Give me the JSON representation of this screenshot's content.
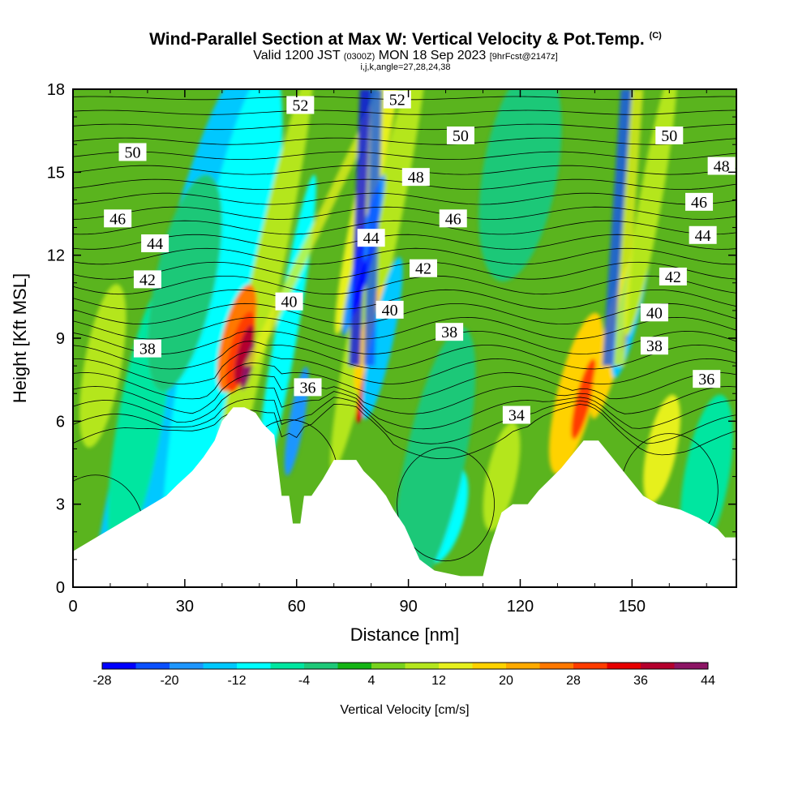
{
  "header": {
    "title": "Wind-Parallel Section at Max W: Vertical Velocity & Pot.Temp.",
    "copyright": "(C)",
    "valid_prefix": "Valid 1200 JST",
    "valid_utc": "(0300Z)",
    "valid_date": "MON 18 Sep 2023",
    "forecast": "[9hrFcst@2147z]",
    "indices": "i,j,k,angle=27,28,24,38"
  },
  "chart_data": {
    "type": "heatmap",
    "xlabel": "Distance [nm]",
    "ylabel": "Height [Kft MSL]",
    "xlim": [
      0,
      178
    ],
    "ylim": [
      0,
      18
    ],
    "x_ticks": [
      "0",
      "30",
      "60",
      "90",
      "120",
      "150"
    ],
    "x_tick_values": [
      0,
      30,
      60,
      90,
      120,
      150
    ],
    "y_ticks": [
      "0",
      "3",
      "6",
      "9",
      "12",
      "15",
      "18"
    ],
    "y_tick_values": [
      0,
      3,
      6,
      9,
      12,
      15,
      18
    ],
    "colorbar": {
      "title": "Vertical Velocity [cm/s]",
      "tick_labels": [
        "-28",
        "-20",
        "-12",
        "-4",
        "4",
        "12",
        "20",
        "28",
        "36",
        "44"
      ],
      "levels": [
        -28,
        -24,
        -20,
        -16,
        -12,
        -8,
        -4,
        0,
        4,
        8,
        12,
        16,
        20,
        24,
        28,
        32,
        36,
        40,
        44
      ],
      "colors": [
        "#0000ff",
        "#0a50ff",
        "#1e96ff",
        "#00c8ff",
        "#00ffff",
        "#00e6a0",
        "#1ec878",
        "#14b414",
        "#78d21e",
        "#b4e61e",
        "#e6f01e",
        "#ffd200",
        "#ffaa00",
        "#ff7800",
        "#ff3c00",
        "#e60000",
        "#b4002d",
        "#8c1464",
        "#5a1e8c"
      ]
    },
    "terrain_kft": [
      [
        0,
        1.3
      ],
      [
        5,
        1.7
      ],
      [
        10,
        2.1
      ],
      [
        15,
        2.5
      ],
      [
        20,
        2.9
      ],
      [
        25,
        3.3
      ],
      [
        28,
        3.7
      ],
      [
        32,
        4.2
      ],
      [
        35,
        4.7
      ],
      [
        38,
        5.3
      ],
      [
        40,
        6.0
      ],
      [
        43,
        6.5
      ],
      [
        46,
        6.5
      ],
      [
        49,
        6.3
      ],
      [
        51,
        5.9
      ],
      [
        54,
        5.5
      ],
      [
        56,
        3.3
      ],
      [
        58,
        3.3
      ],
      [
        59,
        2.3
      ],
      [
        61,
        2.3
      ],
      [
        62,
        3.3
      ],
      [
        64,
        3.3
      ],
      [
        67,
        3.9
      ],
      [
        70,
        4.6
      ],
      [
        76,
        4.6
      ],
      [
        78,
        4.2
      ],
      [
        81,
        3.8
      ],
      [
        84,
        3.3
      ],
      [
        86,
        2.8
      ],
      [
        89,
        2.2
      ],
      [
        91,
        1.6
      ],
      [
        93,
        1.0
      ],
      [
        97,
        0.6
      ],
      [
        104,
        0.4
      ],
      [
        110,
        0.4
      ],
      [
        112,
        1.5
      ],
      [
        115,
        2.7
      ],
      [
        118,
        3.0
      ],
      [
        122,
        3.0
      ],
      [
        125,
        3.5
      ],
      [
        128,
        3.9
      ],
      [
        131,
        4.3
      ],
      [
        134,
        4.8
      ],
      [
        137,
        5.3
      ],
      [
        141,
        5.3
      ],
      [
        144,
        4.8
      ],
      [
        147,
        4.3
      ],
      [
        150,
        3.8
      ],
      [
        153,
        3.3
      ],
      [
        157,
        3.0
      ],
      [
        163,
        2.8
      ],
      [
        168,
        2.5
      ],
      [
        173,
        2.1
      ],
      [
        175,
        1.8
      ],
      [
        178,
        1.8
      ]
    ],
    "contour_labels": [
      "52",
      "52",
      "50",
      "50",
      "50",
      "48",
      "48",
      "46",
      "46",
      "46",
      "44",
      "44",
      "44",
      "42",
      "42",
      "42",
      "40",
      "40",
      "40",
      "38",
      "38",
      "38",
      "36",
      "36",
      "36",
      "34"
    ],
    "contour_label_positions": [
      [
        61,
        17.4
      ],
      [
        87,
        17.6
      ],
      [
        104,
        16.3
      ],
      [
        16,
        15.7
      ],
      [
        160,
        16.3
      ],
      [
        92,
        14.8
      ],
      [
        174,
        15.2
      ],
      [
        12,
        13.3
      ],
      [
        102,
        13.3
      ],
      [
        168,
        13.9
      ],
      [
        22,
        12.4
      ],
      [
        80,
        12.6
      ],
      [
        169,
        12.7
      ],
      [
        20,
        11.1
      ],
      [
        94,
        11.5
      ],
      [
        161,
        11.2
      ],
      [
        58,
        10.3
      ],
      [
        85,
        10.0
      ],
      [
        156,
        9.9
      ],
      [
        20,
        8.6
      ],
      [
        101,
        9.2
      ],
      [
        156,
        8.7
      ],
      [
        194,
        7.8
      ],
      [
        63,
        7.2
      ],
      [
        170,
        7.5
      ],
      [
        119,
        6.2
      ]
    ]
  }
}
